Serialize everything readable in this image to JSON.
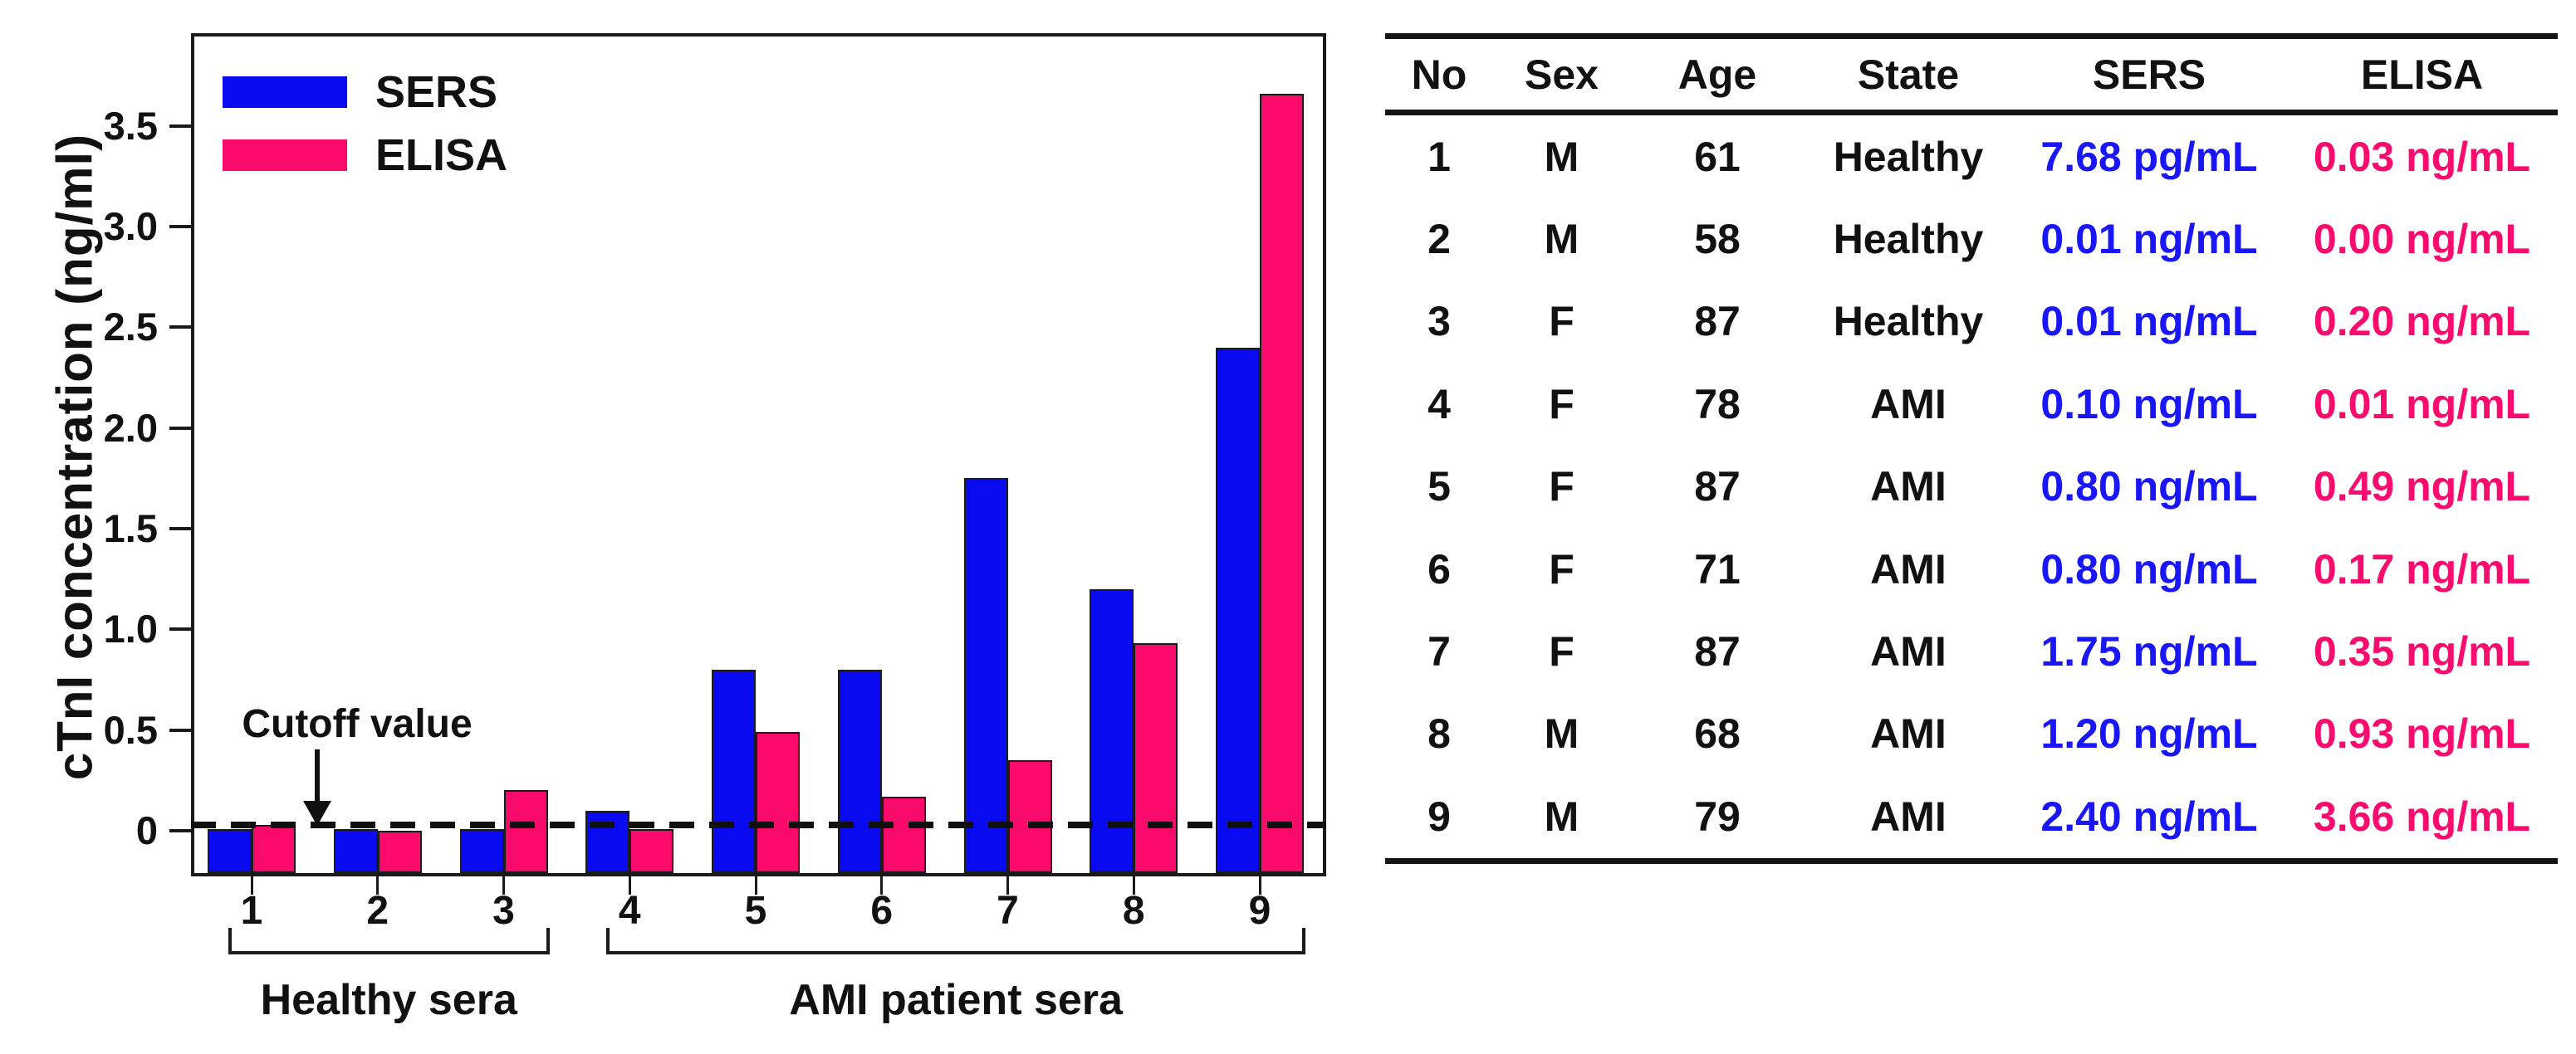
{
  "chart": {
    "y_axis_label": "cTnI concentration (ng/ml)",
    "y_ticks": [
      "0",
      "0.5",
      "1.0",
      "1.5",
      "2.0",
      "2.5",
      "3.0",
      "3.5"
    ],
    "cutoff_label": "Cutoff value"
  },
  "chart_data": {
    "type": "bar",
    "categories": [
      "1",
      "2",
      "3",
      "4",
      "5",
      "6",
      "7",
      "8",
      "9"
    ],
    "series": [
      {
        "name": "SERS",
        "color": "#0a0af0",
        "values": [
          0.008,
          0.01,
          0.01,
          0.1,
          0.8,
          0.8,
          1.75,
          1.2,
          2.4
        ]
      },
      {
        "name": "ELISA",
        "color": "#fa0a6b",
        "values": [
          0.03,
          0.0,
          0.2,
          0.01,
          0.49,
          0.17,
          0.35,
          0.93,
          3.66
        ]
      }
    ],
    "title": "",
    "xlabel": "",
    "ylabel": "cTnI concentration (ng/ml)",
    "ylim": [
      -0.21,
      3.96
    ],
    "grid": false,
    "legend_position": "top-left",
    "cutoff_value": 0.03,
    "cutoff_annotation": "Cutoff value",
    "group_brackets": [
      {
        "label": "Healthy sera",
        "from": 1,
        "to": 3
      },
      {
        "label": "AMI patient sera",
        "from": 4,
        "to": 9
      }
    ]
  },
  "table": {
    "headers": [
      "No",
      "Sex",
      "Age",
      "State",
      "SERS",
      "ELISA"
    ],
    "header_color": "#111111",
    "sers_color": "#1a16fa",
    "elisa_color": "#fa0c6e",
    "rows": [
      [
        "1",
        "M",
        "61",
        "Healthy",
        "7.68 pg/mL",
        "0.03 ng/mL"
      ],
      [
        "2",
        "M",
        "58",
        "Healthy",
        "0.01 ng/mL",
        "0.00 ng/mL"
      ],
      [
        "3",
        "F",
        "87",
        "Healthy",
        "0.01 ng/mL",
        "0.20 ng/mL"
      ],
      [
        "4",
        "F",
        "78",
        "AMI",
        "0.10 ng/mL",
        "0.01 ng/mL"
      ],
      [
        "5",
        "F",
        "87",
        "AMI",
        "0.80 ng/mL",
        "0.49 ng/mL"
      ],
      [
        "6",
        "F",
        "71",
        "AMI",
        "0.80 ng/mL",
        "0.17 ng/mL"
      ],
      [
        "7",
        "F",
        "87",
        "AMI",
        "1.75 ng/mL",
        "0.35 ng/mL"
      ],
      [
        "8",
        "M",
        "68",
        "AMI",
        "1.20 ng/mL",
        "0.93 ng/mL"
      ],
      [
        "9",
        "M",
        "79",
        "AMI",
        "2.40 ng/mL",
        "3.66 ng/mL"
      ]
    ]
  }
}
